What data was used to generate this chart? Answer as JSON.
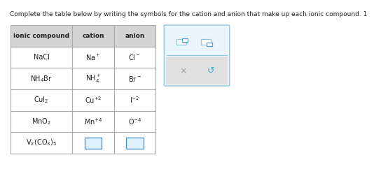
{
  "title": "Complete the table below by writing the symbols for the cation and anion that make up each ionic compound. 1",
  "title_fontsize": 6.5,
  "col_headers": [
    "ionic compound",
    "cation",
    "anion"
  ],
  "rows": [
    {
      "compound": "NaCl",
      "cation": "Na$^+$",
      "anion": "Cl$^-$"
    },
    {
      "compound": "NH$_4$Br",
      "cation": "NH$_4^+$",
      "anion": "Br$^-$"
    },
    {
      "compound": "CuI$_2$",
      "cation": "Cu$^{+2}$",
      "anion": "I$^{-2}$"
    },
    {
      "compound": "MnO$_2$",
      "cation": "Mn$^{+4}$",
      "anion": "O$^{-4}$"
    },
    {
      "compound": "V$_2$(CO$_3$)$_5$",
      "cation": "",
      "anion": ""
    }
  ],
  "header_bg": "#d4d4d4",
  "header_fontsize": 6.5,
  "cell_fontsize": 7.0,
  "border_color": "#aaaaaa",
  "text_color": "#222222",
  "widget_box_color": "#eaf5fb",
  "widget_border_color": "#90c8e0",
  "input_box_color": "#ddf0fb",
  "input_border_color": "#5599cc",
  "x_color": "#999999",
  "refresh_color": "#44aacc",
  "bg_color": "#ffffff",
  "gray_bottom_color": "#e0e0e0"
}
